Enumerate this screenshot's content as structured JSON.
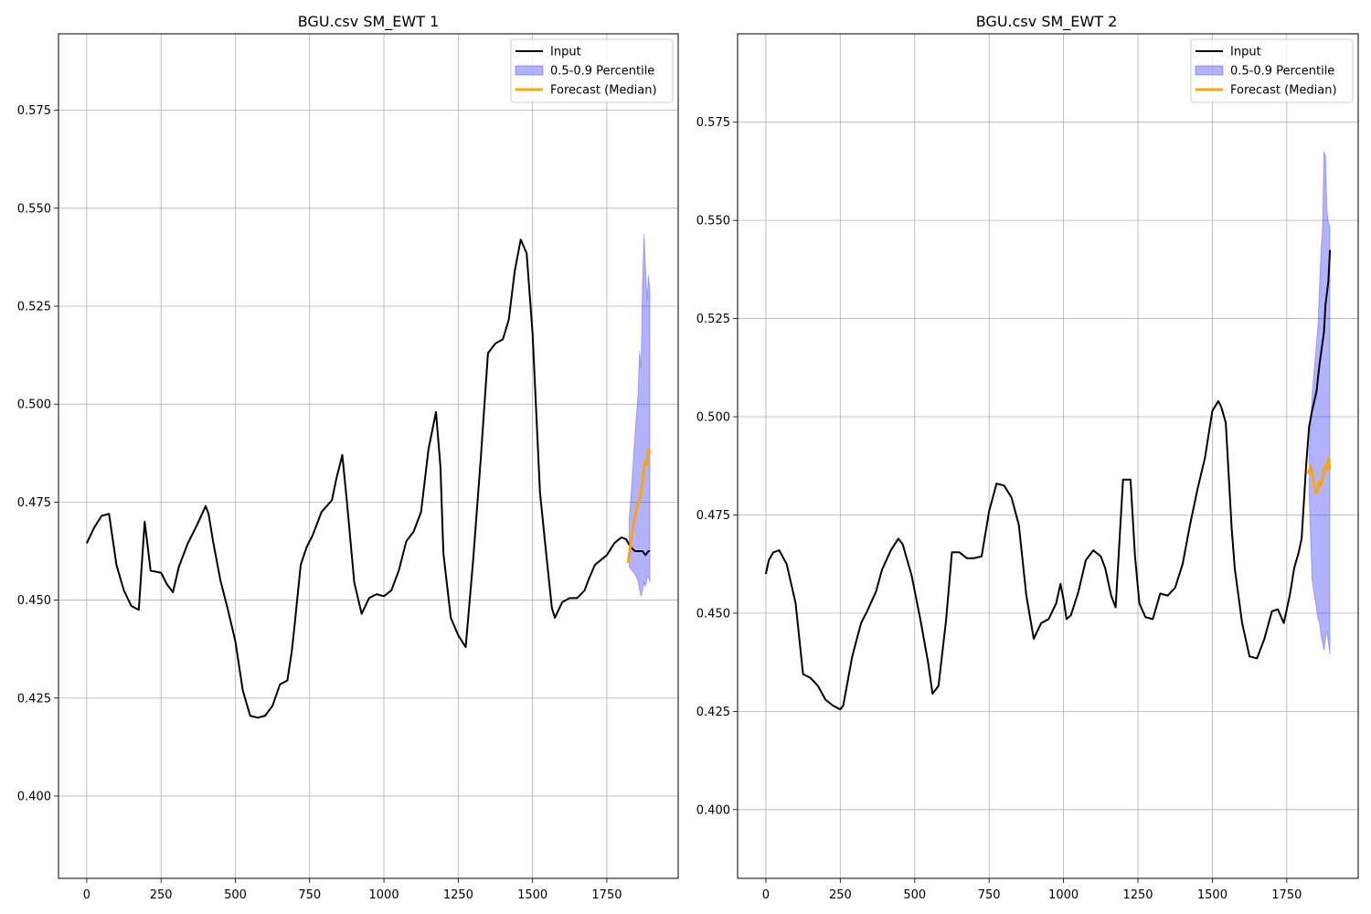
{
  "chart_data": [
    {
      "type": "line",
      "title": "BGU.csv SM_EWT 1",
      "xlabel": "",
      "ylabel": "",
      "xlim": [
        -95,
        1990
      ],
      "ylim": [
        0.379,
        0.5945
      ],
      "xticks": [
        0,
        250,
        500,
        750,
        1000,
        1250,
        1500,
        1750
      ],
      "xtick_labels": [
        "0",
        "250",
        "500",
        "750",
        "1000",
        "1250",
        "1500",
        "1750"
      ],
      "yticks": [
        0.4,
        0.425,
        0.45,
        0.475,
        0.5,
        0.525,
        0.55,
        0.575
      ],
      "ytick_labels": [
        "0.400",
        "0.425",
        "0.450",
        "0.475",
        "0.500",
        "0.525",
        "0.550",
        "0.575"
      ],
      "grid": true,
      "legend": {
        "position": "top-right",
        "entries": [
          "Input",
          "0.5-0.9 Percentile",
          "Forecast (Median)"
        ]
      },
      "colors": {
        "input": "#000000",
        "band": "#0000ff",
        "forecast": "#ffa500"
      },
      "series": [
        {
          "name": "Input",
          "x": [
            0,
            25,
            50,
            75,
            100,
            125,
            150,
            175,
            195,
            215,
            250,
            270,
            290,
            310,
            340,
            370,
            400,
            410,
            425,
            450,
            475,
            500,
            525,
            550,
            575,
            600,
            625,
            650,
            675,
            690,
            700,
            720,
            740,
            760,
            790,
            825,
            840,
            860,
            875,
            900,
            925,
            950,
            975,
            1000,
            1025,
            1050,
            1075,
            1100,
            1125,
            1150,
            1175,
            1190,
            1200,
            1225,
            1250,
            1275,
            1300,
            1325,
            1350,
            1375,
            1400,
            1420,
            1440,
            1460,
            1480,
            1500,
            1525,
            1545,
            1565,
            1575,
            1600,
            1625,
            1650,
            1675,
            1690,
            1710,
            1750,
            1775,
            1790,
            1800,
            1815,
            1830,
            1845,
            1860,
            1870,
            1880,
            1890,
            1895
          ],
          "values": [
            0.4645,
            0.4685,
            0.4715,
            0.472,
            0.459,
            0.4525,
            0.4485,
            0.4475,
            0.47,
            0.4575,
            0.457,
            0.454,
            0.452,
            0.4585,
            0.4645,
            0.469,
            0.474,
            0.472,
            0.465,
            0.455,
            0.4475,
            0.4395,
            0.427,
            0.4205,
            0.42,
            0.4205,
            0.423,
            0.4285,
            0.4295,
            0.437,
            0.444,
            0.459,
            0.4635,
            0.4665,
            0.4725,
            0.4755,
            0.481,
            0.487,
            0.4755,
            0.4545,
            0.4465,
            0.4505,
            0.4515,
            0.451,
            0.4525,
            0.4575,
            0.465,
            0.4675,
            0.4725,
            0.4885,
            0.498,
            0.484,
            0.462,
            0.4455,
            0.441,
            0.438,
            0.46,
            0.4855,
            0.513,
            0.5155,
            0.5165,
            0.5215,
            0.534,
            0.542,
            0.5385,
            0.518,
            0.4775,
            0.4625,
            0.448,
            0.4455,
            0.4495,
            0.4505,
            0.4505,
            0.4525,
            0.4555,
            0.459,
            0.4615,
            0.4645,
            0.4655,
            0.466,
            0.4655,
            0.4635,
            0.4625,
            0.4625,
            0.4625,
            0.4615,
            0.4625,
            0.4625
          ]
        },
        {
          "name": "0.5-0.9 Percentile",
          "x": [
            1825,
            1835,
            1845,
            1855,
            1860,
            1865,
            1870,
            1875,
            1880,
            1885,
            1890,
            1895
          ],
          "lower": [
            0.4585,
            0.4575,
            0.4565,
            0.455,
            0.4525,
            0.451,
            0.4525,
            0.4545,
            0.4535,
            0.4555,
            0.456,
            0.4545
          ],
          "upper": [
            0.4705,
            0.481,
            0.4925,
            0.5025,
            0.5135,
            0.5095,
            0.5315,
            0.5435,
            0.535,
            0.5265,
            0.533,
            0.5285
          ]
        },
        {
          "name": "Forecast (Median)",
          "x": [
            1822,
            1830,
            1840,
            1848,
            1855,
            1860,
            1865,
            1870,
            1875,
            1880,
            1885,
            1890,
            1895
          ],
          "values": [
            0.4595,
            0.4645,
            0.4695,
            0.4725,
            0.4745,
            0.4755,
            0.4775,
            0.4805,
            0.4835,
            0.4855,
            0.4845,
            0.4885,
            0.4875
          ]
        }
      ]
    },
    {
      "type": "line",
      "title": "BGU.csv SM_EWT 2",
      "xlabel": "",
      "ylabel": "",
      "xlim": [
        -95,
        1990
      ],
      "ylim": [
        0.3825,
        0.5975
      ],
      "xticks": [
        0,
        250,
        500,
        750,
        1000,
        1250,
        1500,
        1750
      ],
      "xtick_labels": [
        "0",
        "250",
        "500",
        "750",
        "1000",
        "1250",
        "1500",
        "1750"
      ],
      "yticks": [
        0.4,
        0.425,
        0.45,
        0.475,
        0.5,
        0.525,
        0.55,
        0.575
      ],
      "ytick_labels": [
        "0.400",
        "0.425",
        "0.450",
        "0.475",
        "0.500",
        "0.525",
        "0.550",
        "0.575"
      ],
      "grid": true,
      "legend": {
        "position": "top-right",
        "entries": [
          "Input",
          "0.5-0.9 Percentile",
          "Forecast (Median)"
        ]
      },
      "colors": {
        "input": "#000000",
        "band": "#0000ff",
        "forecast": "#ffa500"
      },
      "series": [
        {
          "name": "Input",
          "x": [
            0,
            10,
            25,
            45,
            70,
            100,
            125,
            150,
            175,
            200,
            225,
            250,
            260,
            290,
            320,
            340,
            370,
            390,
            420,
            445,
            460,
            490,
            520,
            545,
            560,
            580,
            605,
            625,
            650,
            675,
            700,
            725,
            750,
            775,
            800,
            825,
            850,
            875,
            900,
            925,
            950,
            975,
            990,
            1000,
            1010,
            1025,
            1050,
            1075,
            1100,
            1125,
            1140,
            1160,
            1175,
            1200,
            1210,
            1225,
            1240,
            1255,
            1275,
            1300,
            1325,
            1350,
            1375,
            1400,
            1425,
            1450,
            1475,
            1500,
            1520,
            1530,
            1545,
            1565,
            1575,
            1600,
            1625,
            1650,
            1675,
            1700,
            1720,
            1740,
            1760,
            1775,
            1790,
            1800,
            1815,
            1825,
            1835,
            1850,
            1860,
            1875,
            1880,
            1890,
            1895
          ],
          "values": [
            0.46,
            0.4635,
            0.4655,
            0.466,
            0.4625,
            0.4525,
            0.4345,
            0.4335,
            0.4315,
            0.428,
            0.4265,
            0.4255,
            0.4265,
            0.439,
            0.4475,
            0.4505,
            0.4555,
            0.461,
            0.466,
            0.469,
            0.4675,
            0.4595,
            0.448,
            0.4375,
            0.4295,
            0.4315,
            0.448,
            0.4655,
            0.4655,
            0.464,
            0.464,
            0.4645,
            0.476,
            0.483,
            0.4825,
            0.4795,
            0.4725,
            0.4545,
            0.4435,
            0.4475,
            0.4485,
            0.4525,
            0.4575,
            0.4535,
            0.4485,
            0.4495,
            0.4555,
            0.4635,
            0.466,
            0.4645,
            0.4615,
            0.4545,
            0.4515,
            0.484,
            0.484,
            0.484,
            0.4645,
            0.4525,
            0.449,
            0.4485,
            0.455,
            0.4545,
            0.4565,
            0.4625,
            0.4725,
            0.4815,
            0.4895,
            0.5015,
            0.504,
            0.5025,
            0.4985,
            0.4715,
            0.4615,
            0.4475,
            0.439,
            0.4385,
            0.4435,
            0.4505,
            0.451,
            0.4475,
            0.4545,
            0.4615,
            0.4655,
            0.469,
            0.4875,
            0.4975,
            0.5015,
            0.5065,
            0.5135,
            0.5215,
            0.5285,
            0.5345,
            0.5425
          ]
        },
        {
          "name": "0.5-0.9 Percentile",
          "x": [
            1825,
            1835,
            1845,
            1855,
            1860,
            1865,
            1870,
            1875,
            1880,
            1885,
            1890,
            1895
          ],
          "lower": [
            0.4805,
            0.4585,
            0.4535,
            0.4485,
            0.4475,
            0.4445,
            0.4425,
            0.4405,
            0.4435,
            0.4455,
            0.4425,
            0.4395
          ],
          "upper": [
            0.4905,
            0.5055,
            0.5145,
            0.5235,
            0.5335,
            0.5425,
            0.5475,
            0.5675,
            0.5665,
            0.5525,
            0.5495,
            0.5485
          ]
        },
        {
          "name": "Forecast (Median)",
          "x": [
            1822,
            1830,
            1840,
            1848,
            1855,
            1860,
            1865,
            1870,
            1875,
            1880,
            1885,
            1890,
            1895
          ],
          "values": [
            0.4855,
            0.4875,
            0.4835,
            0.4805,
            0.4815,
            0.4835,
            0.4825,
            0.4845,
            0.4865,
            0.4875,
            0.4865,
            0.4895,
            0.4865
          ]
        }
      ]
    }
  ]
}
